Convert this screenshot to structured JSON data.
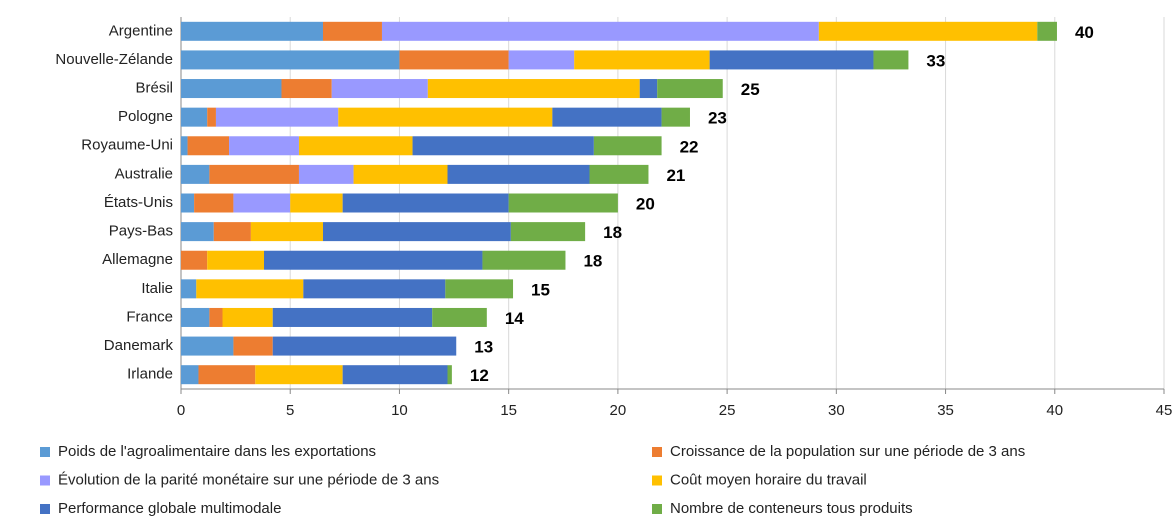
{
  "chart_data": {
    "type": "stacked-bar-horizontal",
    "categories": [
      "Argentine",
      "Nouvelle-Zélande",
      "Brésil",
      "Pologne",
      "Royaume-Uni",
      "Australie",
      "États-Unis",
      "Pays-Bas",
      "Allemagne",
      "Italie",
      "France",
      "Danemark",
      "Irlande"
    ],
    "series": [
      {
        "name": "Poids de l'agroalimentaire dans les exportations",
        "color": "#5b9bd5",
        "values": [
          6.5,
          10.0,
          4.6,
          1.2,
          0.3,
          1.3,
          0.6,
          1.5,
          0,
          0.7,
          1.3,
          2.4,
          0.8
        ]
      },
      {
        "name": "Croissance de la population sur une période de 3 ans",
        "color": "#ed7d31",
        "values": [
          2.7,
          5.0,
          2.3,
          0.4,
          1.9,
          4.1,
          1.8,
          1.7,
          1.2,
          0,
          0.6,
          1.8,
          2.6
        ]
      },
      {
        "name": "Évolution de la parité monétaire sur une période de 3 ans",
        "color": "#9999ff",
        "values": [
          20.0,
          3.0,
          4.4,
          5.6,
          3.2,
          2.5,
          2.6,
          0,
          0,
          0,
          0,
          0,
          0
        ]
      },
      {
        "name": "Coût moyen horaire du travail",
        "color": "#ffc000",
        "values": [
          10.0,
          6.2,
          9.7,
          9.8,
          5.2,
          4.3,
          2.4,
          3.3,
          2.6,
          4.9,
          2.3,
          0,
          4.0
        ]
      },
      {
        "name": "Performance globale multimodale",
        "color": "#4472c4",
        "values": [
          0,
          7.5,
          0.8,
          5.0,
          8.3,
          6.5,
          7.6,
          8.6,
          10.0,
          6.5,
          7.3,
          8.4,
          4.8
        ]
      },
      {
        "name": "Nombre de conteneurs tous produits",
        "color": "#70ad47",
        "values": [
          0.9,
          1.6,
          3.0,
          1.3,
          3.1,
          2.7,
          5.0,
          3.4,
          3.8,
          3.1,
          2.5,
          0,
          0.2
        ]
      }
    ],
    "totals": [
      40,
      33,
      25,
      23,
      22,
      21,
      20,
      18,
      18,
      15,
      14,
      13,
      12
    ],
    "xlim": [
      0,
      45
    ],
    "xticks": [
      0,
      5,
      10,
      15,
      20,
      25,
      30,
      35,
      40,
      45
    ],
    "grid": true
  }
}
